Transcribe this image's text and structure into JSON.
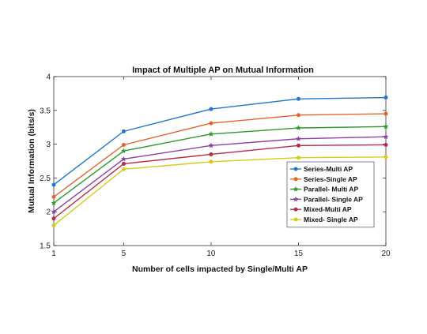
{
  "chart_data": {
    "type": "line",
    "title": "Impact of Multiple AP on Mutual Information",
    "xlabel": "Number of cells impacted by Single/Multi AP",
    "ylabel": "Mutual Information (bits/s)",
    "x": [
      1,
      5,
      10,
      15,
      20
    ],
    "x_ticks": [
      "1",
      "5",
      "10",
      "15",
      "20"
    ],
    "xlim": [
      1,
      20
    ],
    "ylim": [
      1.5,
      4
    ],
    "y_ticks": [
      "1.5",
      "2",
      "2.5",
      "3",
      "3.5",
      "4"
    ],
    "y_tick_values": [
      1.5,
      2,
      2.5,
      3,
      3.5,
      4
    ],
    "grid": false,
    "legend_position": "right",
    "series": [
      {
        "name": "Series-Multi AP",
        "color": "#1f77d4",
        "marker": "circle",
        "values": [
          2.4,
          3.19,
          3.52,
          3.67,
          3.69
        ]
      },
      {
        "name": "Series-Single AP",
        "color": "#e8632b",
        "marker": "circle",
        "values": [
          2.22,
          2.99,
          3.31,
          3.43,
          3.45
        ]
      },
      {
        "name": "Parallel- Multi AP",
        "color": "#2e9a2e",
        "marker": "star",
        "values": [
          2.13,
          2.9,
          3.15,
          3.24,
          3.26
        ]
      },
      {
        "name": "Parallel- Single AP",
        "color": "#8e3fa8",
        "marker": "star",
        "values": [
          2.0,
          2.78,
          2.98,
          3.08,
          3.11
        ]
      },
      {
        "name": "Mixed-Multi AP",
        "color": "#b82b4a",
        "marker": "circle",
        "values": [
          1.9,
          2.71,
          2.85,
          2.98,
          2.99
        ]
      },
      {
        "name": "Mixed- Single AP",
        "color": "#d3cc1a",
        "marker": "circle",
        "values": [
          1.8,
          2.63,
          2.74,
          2.8,
          2.81
        ]
      }
    ]
  }
}
